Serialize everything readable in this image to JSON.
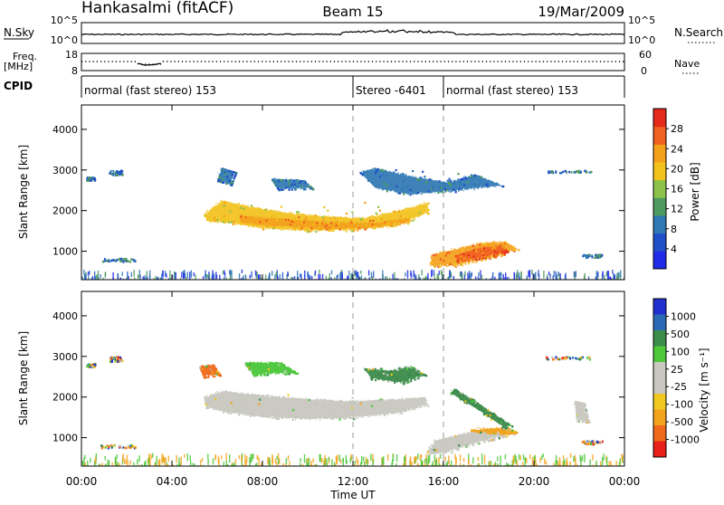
{
  "header": {
    "site": "Hankasalmi (fitACF)",
    "beam": "Beam 15",
    "date": "19/Mar/2009"
  },
  "top_panels": {
    "nsky_label": "N.Sky",
    "nsky_ticks": [
      "10^5",
      "10^0"
    ],
    "nsearch_label": "N.Search",
    "nsearch_ticks": [
      "10^5",
      "10^0"
    ],
    "freq_label_line1": "Freq.",
    "freq_label_line2": "[MHz]",
    "freq_ticks": [
      "18",
      "8"
    ],
    "nave_label": "Nave",
    "nave_ticks": [
      "60",
      "0"
    ],
    "cpid_label": "CPID",
    "cpid_segments": [
      {
        "start": 0,
        "end": 12,
        "text": "normal (fast stereo) 153"
      },
      {
        "start": 12,
        "end": 16,
        "text": "Stereo -6401"
      },
      {
        "start": 16,
        "end": 24,
        "text": "normal (fast stereo) 153"
      }
    ]
  },
  "colors": {
    "power": [
      "#1f2be6",
      "#2050c8",
      "#2f78b4",
      "#4f9a5e",
      "#8dc24a",
      "#f2c21d",
      "#f4a11a",
      "#f06020",
      "#e52a1c"
    ],
    "velocity": [
      "#e8201a",
      "#f06a1c",
      "#f4a41c",
      "#f0c820",
      "#c8c8c0",
      "#c8c8c0",
      "#4cc83a",
      "#3c8c4c",
      "#2a6ab4",
      "#2030d0"
    ],
    "ground_scatter": "#b4b4b0"
  },
  "chart_data": [
    {
      "type": "heatmap",
      "panel": "power",
      "ylabel": "Slant Range [km]",
      "ylim": [
        300,
        4600
      ],
      "y_ticks": [
        1000,
        2000,
        3000,
        4000
      ],
      "xlim": [
        0,
        24
      ],
      "colorbar_label": "Power [dB]",
      "colorbar_ticks": [
        4,
        8,
        12,
        16,
        20,
        24,
        28
      ],
      "colorbar_range": [
        0,
        32
      ],
      "regions": [
        {
          "name": "main-band",
          "path": [
            [
              5.4,
              1900
            ],
            [
              6.2,
              2250
            ],
            [
              7.5,
              2100
            ],
            [
              9,
              1950
            ],
            [
              11,
              1850
            ],
            [
              12.5,
              1820
            ],
            [
              14,
              2000
            ],
            [
              15.3,
              2200
            ],
            [
              15.3,
              1950
            ],
            [
              14,
              1620
            ],
            [
              12,
              1520
            ],
            [
              10,
              1500
            ],
            [
              8,
              1560
            ],
            [
              6.5,
              1700
            ],
            [
              5.6,
              1720
            ]
          ],
          "level": 18
        },
        {
          "name": "main-core",
          "path": [
            [
              7,
              1880
            ],
            [
              9,
              1800
            ],
            [
              11,
              1720
            ],
            [
              13,
              1700
            ],
            [
              14.5,
              1820
            ],
            [
              14.5,
              1700
            ],
            [
              12.5,
              1560
            ],
            [
              10.5,
              1560
            ],
            [
              8.5,
              1620
            ],
            [
              7,
              1700
            ]
          ],
          "level": 22
        },
        {
          "name": "lower-echo",
          "path": [
            [
              15.5,
              920
            ],
            [
              16.5,
              1050
            ],
            [
              17.6,
              1200
            ],
            [
              18.7,
              1250
            ],
            [
              19.3,
              1050
            ],
            [
              18.5,
              900
            ],
            [
              17.5,
              770
            ],
            [
              16.5,
              640
            ],
            [
              15.4,
              640
            ]
          ],
          "level": 22
        },
        {
          "name": "lower-core",
          "path": [
            [
              16.5,
              900
            ],
            [
              17.6,
              1080
            ],
            [
              18.6,
              1140
            ],
            [
              18.8,
              1000
            ],
            [
              17.8,
              850
            ],
            [
              16.6,
              760
            ]
          ],
          "level": 28
        },
        {
          "name": "upper-echo",
          "path": [
            [
              12.3,
              2950
            ],
            [
              13,
              3050
            ],
            [
              14.5,
              2850
            ],
            [
              16.2,
              2700
            ],
            [
              17.4,
              2900
            ],
            [
              18.6,
              2620
            ],
            [
              16.5,
              2480
            ],
            [
              14.5,
              2400
            ],
            [
              13,
              2550
            ]
          ],
          "level": 8
        },
        {
          "name": "dawn-echo",
          "path": [
            [
              6.2,
              3050
            ],
            [
              6.8,
              2950
            ],
            [
              6.6,
              2650
            ],
            [
              6,
              2750
            ]
          ],
          "level": 8
        },
        {
          "name": "midday-echo",
          "path": [
            [
              8.4,
              2780
            ],
            [
              9.8,
              2750
            ],
            [
              10.2,
              2550
            ],
            [
              8.7,
              2530
            ]
          ],
          "level": 8
        }
      ]
    },
    {
      "type": "heatmap",
      "panel": "velocity",
      "ylabel": "Slant Range [km]",
      "ylim": [
        300,
        4600
      ],
      "y_ticks": [
        1000,
        2000,
        3000,
        4000
      ],
      "xlim": [
        0,
        24
      ],
      "x_ticks": [
        "00:00",
        "04:00",
        "08:00",
        "12:00",
        "16:00",
        "20:00",
        "00:00"
      ],
      "xlabel": "Time UT",
      "colorbar_label": "Velocity [m s⁻¹]",
      "colorbar_ticks": [
        1000,
        500,
        100,
        25,
        -25,
        -100,
        -500,
        -1000
      ],
      "regions": [
        {
          "name": "main-band",
          "path": [
            [
              5.4,
              2000
            ],
            [
              6.2,
              2150
            ],
            [
              8,
              2050
            ],
            [
              10,
              1950
            ],
            [
              12,
              1900
            ],
            [
              14,
              1950
            ],
            [
              15.2,
              2000
            ],
            [
              15.3,
              1800
            ],
            [
              14,
              1600
            ],
            [
              12,
              1480
            ],
            [
              10,
              1450
            ],
            [
              8,
              1500
            ],
            [
              6.2,
              1650
            ],
            [
              5.5,
              1750
            ]
          ],
          "velocity": 0
        },
        {
          "name": "lower-echo",
          "path": [
            [
              15.6,
              920
            ],
            [
              16.5,
              1050
            ],
            [
              17.4,
              1180
            ],
            [
              18.6,
              1250
            ],
            [
              19.1,
              1100
            ],
            [
              18,
              950
            ],
            [
              17,
              800
            ],
            [
              16,
              600
            ],
            [
              15.2,
              600
            ]
          ],
          "velocity": 0
        },
        {
          "name": "lower-edge",
          "path": [
            [
              17.2,
              1200
            ],
            [
              18.8,
              1260
            ],
            [
              19.2,
              1140
            ],
            [
              18.6,
              1110
            ],
            [
              17.6,
              1150
            ]
          ],
          "velocity": -200
        },
        {
          "name": "upper-flow",
          "path": [
            [
              16.5,
              2200
            ],
            [
              17.3,
              1950
            ],
            [
              18.2,
              1600
            ],
            [
              19,
              1300
            ],
            [
              18.7,
              1250
            ],
            [
              17.9,
              1550
            ],
            [
              17,
              1870
            ],
            [
              16.3,
              2100
            ]
          ],
          "velocity": 100
        },
        {
          "name": "upper-echo",
          "path": [
            [
              12.5,
              2700
            ],
            [
              13.5,
              2650
            ],
            [
              14.6,
              2750
            ],
            [
              15.2,
              2550
            ],
            [
              14.2,
              2350
            ],
            [
              12.8,
              2450
            ]
          ],
          "velocity": 100
        },
        {
          "name": "dawn-echo",
          "path": [
            [
              5.2,
              2750
            ],
            [
              5.8,
              2800
            ],
            [
              6.1,
              2550
            ],
            [
              5.4,
              2500
            ]
          ],
          "velocity": -500
        },
        {
          "name": "morning-echo",
          "path": [
            [
              7.2,
              2850
            ],
            [
              8.8,
              2850
            ],
            [
              9.5,
              2600
            ],
            [
              7.6,
              2550
            ]
          ],
          "velocity": 60
        },
        {
          "name": "late-echo",
          "path": [
            [
              21.8,
              1900
            ],
            [
              22.2,
              1850
            ],
            [
              22.4,
              1400
            ],
            [
              21.9,
              1420
            ]
          ],
          "velocity": 0
        }
      ]
    }
  ]
}
